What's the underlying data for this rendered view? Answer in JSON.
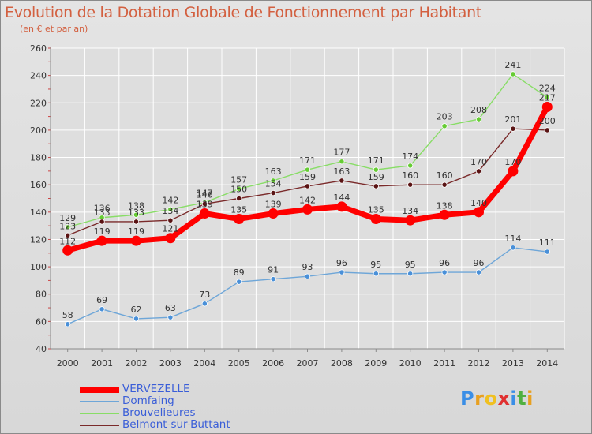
{
  "header": {
    "title": "Evolution de la Dotation Globale de Fonctionnement par Habitant",
    "subtitle": "(en € et par an)"
  },
  "logo": {
    "letters": [
      "P",
      "r",
      "o",
      "x",
      "i",
      "t",
      "i"
    ]
  },
  "colors": {
    "title": "#d36040",
    "grid": "#ffffff",
    "axis": "#8a8a8a",
    "tick_labels": "#333333"
  },
  "chart_data": {
    "type": "line",
    "title": "Evolution de la Dotation Globale de Fonctionnement par Habitant",
    "subtitle": "(en € et par an)",
    "xlabel": "",
    "ylabel": "",
    "ylim": [
      40,
      260
    ],
    "yticks": [
      40,
      60,
      80,
      100,
      120,
      140,
      160,
      180,
      200,
      220,
      240,
      260
    ],
    "grid": true,
    "legend_position": "bottom-left",
    "x": [
      "2000",
      "2001",
      "2002",
      "2003",
      "2004",
      "2005",
      "2006",
      "2007",
      "2008",
      "2009",
      "2010",
      "2011",
      "2012",
      "2013",
      "2014"
    ],
    "series": [
      {
        "name": "VERVEZELLE",
        "color": "#ff0000",
        "emphasis": true,
        "values": [
          112,
          119,
          119,
          121,
          139,
          135,
          139,
          142,
          144,
          135,
          134,
          138,
          140,
          170,
          217
        ],
        "labels": [
          "112",
          "119",
          "119",
          "121",
          "139",
          "135",
          "139",
          "142",
          "144",
          "135",
          "134",
          "138",
          "140",
          "170",
          "217"
        ]
      },
      {
        "name": "Domfaing",
        "color": "#6ea6d8",
        "marker_color": "#4a90d8",
        "values": [
          58,
          69,
          62,
          63,
          73,
          89,
          91,
          93,
          96,
          95,
          95,
          96,
          96,
          114,
          111
        ],
        "labels": [
          "58",
          "69",
          "62",
          "63",
          "73",
          "89",
          "91",
          "93",
          "96",
          "95",
          "95",
          "96",
          "96",
          "114",
          "111"
        ]
      },
      {
        "name": "Brouvelieures",
        "color": "#88dd66",
        "marker_color": "#66cc33",
        "values": [
          129,
          136,
          138,
          142,
          147,
          157,
          163,
          171,
          177,
          171,
          174,
          203,
          208,
          241,
          224
        ],
        "labels": [
          "129",
          "136",
          "138",
          "142",
          "147",
          "157",
          "163",
          "171",
          "177",
          "171",
          "174",
          "203",
          "208",
          "241",
          "224"
        ]
      },
      {
        "name": "Belmont-sur-Buttant",
        "color": "#7a2a2a",
        "marker_color": "#5a1414",
        "values": [
          123,
          133,
          133,
          134,
          146,
          150,
          154,
          159,
          163,
          159,
          160,
          160,
          170,
          201,
          200
        ],
        "labels": [
          "123",
          "133",
          "133",
          "134",
          "146",
          "150",
          "154",
          "159",
          "163",
          "159",
          "160",
          "160",
          "170",
          "201",
          "200"
        ]
      }
    ]
  }
}
